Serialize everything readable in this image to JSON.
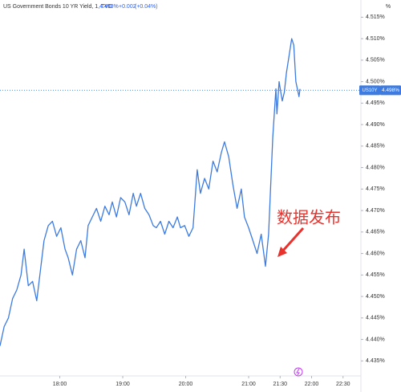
{
  "chart_data": {
    "type": "line",
    "title": "US Government Bonds 10 YR Yield, 1, TVC",
    "last_value": 4.498,
    "last_value_label": "4.498%",
    "change": "+0.002",
    "change_pct": "(+0.04%)",
    "symbol": "US10Y",
    "y_unit": "%",
    "annotation": "数据发布",
    "x": [
      "17:03",
      "17:07",
      "17:11",
      "17:15",
      "17:19",
      "17:23",
      "17:26",
      "17:30",
      "17:34",
      "17:38",
      "17:42",
      "17:45",
      "17:49",
      "17:53",
      "17:57",
      "18:01",
      "18:05",
      "18:08",
      "18:12",
      "18:16",
      "18:20",
      "18:24",
      "18:27",
      "18:31",
      "18:35",
      "18:39",
      "18:43",
      "18:47",
      "18:50",
      "18:54",
      "18:58",
      "19:02",
      "19:06",
      "19:10",
      "19:13",
      "19:17",
      "19:21",
      "19:25",
      "19:29",
      "19:32",
      "19:36",
      "19:40",
      "19:44",
      "19:48",
      "19:52",
      "19:55",
      "19:59",
      "20:03",
      "20:07",
      "20:11",
      "20:14",
      "20:18",
      "20:22",
      "20:26",
      "20:30",
      "20:34",
      "20:37",
      "20:41",
      "20:45",
      "20:49",
      "20:53",
      "20:56",
      "21:00",
      "21:04",
      "21:08",
      "21:12",
      "21:16",
      "21:19",
      "21:23",
      "21:26",
      "21:27",
      "21:29",
      "21:32",
      "21:34",
      "21:36",
      "21:39",
      "21:41",
      "21:43",
      "21:45",
      "21:48",
      "21:49"
    ],
    "series": [
      {
        "name": "US10Y",
        "color": "#3d7be0",
        "values": [
          4.4385,
          4.443,
          4.445,
          4.4495,
          4.4515,
          4.455,
          4.461,
          4.4525,
          4.4535,
          4.449,
          4.457,
          4.463,
          4.4665,
          4.4675,
          4.464,
          4.466,
          4.461,
          4.459,
          4.455,
          4.461,
          4.463,
          4.459,
          4.4665,
          4.4685,
          4.4705,
          4.4675,
          4.471,
          4.469,
          4.472,
          4.4685,
          4.473,
          4.472,
          4.469,
          4.474,
          4.471,
          4.474,
          4.4705,
          4.469,
          4.4665,
          4.466,
          4.4675,
          4.4645,
          4.4675,
          4.466,
          4.4685,
          4.466,
          4.4665,
          4.464,
          4.466,
          4.4795,
          4.474,
          4.4775,
          4.475,
          4.4815,
          4.479,
          4.4835,
          4.486,
          4.4825,
          4.476,
          4.4705,
          4.475,
          4.4685,
          4.466,
          4.463,
          4.46,
          4.4645,
          4.457,
          4.4645,
          4.487,
          4.4983,
          4.4925,
          4.5,
          4.4955,
          4.4975,
          4.502,
          4.5067,
          4.51,
          4.5085,
          4.5,
          4.4965,
          4.4983
        ]
      }
    ],
    "xlim": [
      "17:03",
      "22:47"
    ],
    "xticks": [
      "18:00",
      "19:00",
      "20:00",
      "21:00",
      "21:30",
      "22:00",
      "22:30"
    ],
    "ylim": [
      4.433,
      4.519
    ],
    "yticks": [
      {
        "value": 4.435,
        "label": "4.435%"
      },
      {
        "value": 4.44,
        "label": "4.440%"
      },
      {
        "value": 4.445,
        "label": "4.445%"
      },
      {
        "value": 4.45,
        "label": "4.450%"
      },
      {
        "value": 4.455,
        "label": "4.455%"
      },
      {
        "value": 4.46,
        "label": "4.460%"
      },
      {
        "value": 4.465,
        "label": "4.465%"
      },
      {
        "value": 4.47,
        "label": "4.470%"
      },
      {
        "value": 4.475,
        "label": "4.475%"
      },
      {
        "value": 4.48,
        "label": "4.480%"
      },
      {
        "value": 4.485,
        "label": "4.485%"
      },
      {
        "value": 4.49,
        "label": "4.490%"
      },
      {
        "value": 4.495,
        "label": "4.495%"
      },
      {
        "value": 4.5,
        "label": "4.500%"
      },
      {
        "value": 4.505,
        "label": "4.505%"
      },
      {
        "value": 4.51,
        "label": "4.510%"
      },
      {
        "value": 4.515,
        "label": "4.515%"
      }
    ],
    "grid": false
  }
}
